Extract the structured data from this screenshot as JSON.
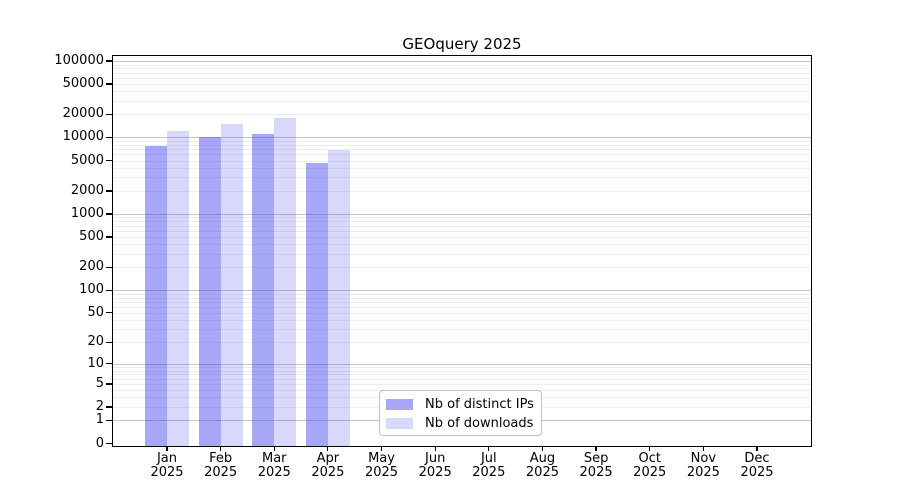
{
  "chart_data": {
    "type": "bar",
    "title": "GEOquery 2025",
    "xlabel": "",
    "ylabel": "",
    "year": "2025",
    "categories": [
      "Jan",
      "Feb",
      "Mar",
      "Apr",
      "May",
      "Jun",
      "Jul",
      "Aug",
      "Sep",
      "Oct",
      "Nov",
      "Dec"
    ],
    "series": [
      {
        "name": "Nb of distinct IPs",
        "color": "rgba(60,60,240,0.45)",
        "values": [
          7800,
          10000,
          11200,
          4700,
          null,
          null,
          null,
          null,
          null,
          null,
          null,
          null
        ]
      },
      {
        "name": "Nb of downloads",
        "color": "rgba(60,60,240,0.20)",
        "values": [
          12200,
          15000,
          17800,
          6800,
          null,
          null,
          null,
          null,
          null,
          null,
          null,
          null
        ]
      }
    ],
    "yscale": "log1p",
    "ylim": [
      0,
      100000
    ],
    "y_ticks": [
      0,
      1,
      2,
      5,
      10,
      20,
      50,
      100,
      200,
      500,
      1000,
      2000,
      5000,
      10000,
      20000,
      50000,
      100000
    ],
    "grid": true,
    "grid_major_color": "#c6c6c6",
    "grid_minor_color": "#ededed",
    "legend_position": "bottom-center",
    "axis_color": "#000000"
  }
}
